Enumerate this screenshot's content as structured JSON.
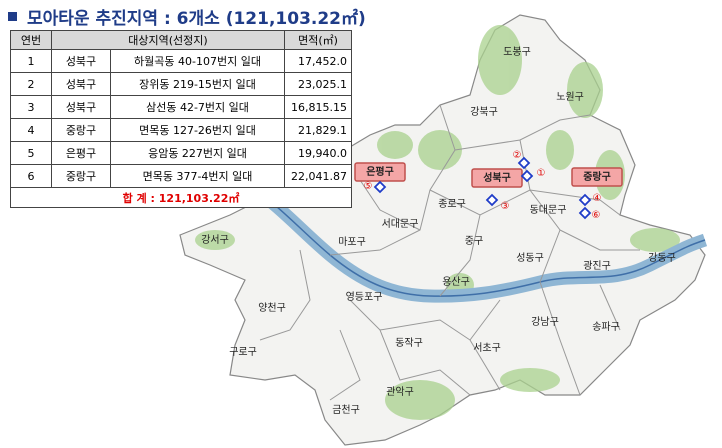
{
  "header": {
    "title": "모아타운 추진지역 : 6개소 (121,103.22㎡)"
  },
  "table": {
    "headers": [
      "연번",
      "대상지역(선정지)",
      "면적(㎡)"
    ],
    "rows": [
      [
        "1",
        "성북구",
        "하월곡동 40-107번지 일대",
        "17,452.0"
      ],
      [
        "2",
        "성북구",
        "장위동 219-15번지 일대",
        "23,025.1"
      ],
      [
        "3",
        "성북구",
        "삼선동 42-7번지 일대",
        "16,815.15"
      ],
      [
        "4",
        "중랑구",
        "면목동 127-26번지 일대",
        "21,829.1"
      ],
      [
        "5",
        "은평구",
        "응암동 227번지 일대",
        "19,940.0"
      ],
      [
        "6",
        "중랑구",
        "면목동 377-4번지 일대",
        "22,041.87"
      ]
    ],
    "total": "합  계 : 121,103.22㎡"
  },
  "map": {
    "districts": [
      "도봉구",
      "노원구",
      "강북구",
      "종로구",
      "서대문구",
      "동대문구",
      "중구",
      "마포구",
      "강서구",
      "성동구",
      "광진구",
      "강동구",
      "용산구",
      "영등포구",
      "양천구",
      "구로구",
      "동작구",
      "서초구",
      "강남구",
      "송파구",
      "관악구",
      "금천구"
    ],
    "highlighted": [
      "은평구",
      "성북구",
      "중랑구"
    ],
    "markers": [
      "①",
      "②",
      "③",
      "④",
      "⑤",
      "⑥"
    ]
  }
}
